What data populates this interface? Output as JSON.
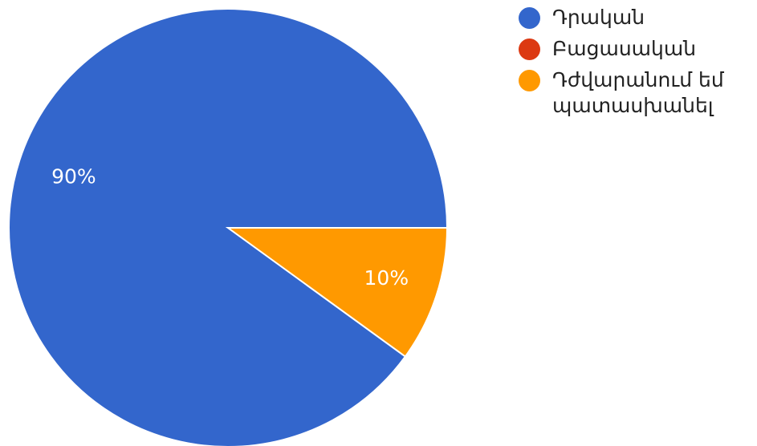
{
  "chart_data": {
    "type": "pie",
    "start_angle_deg": 0,
    "direction": "counterclockwise",
    "slices": [
      {
        "label": "Դրական",
        "value": 90,
        "display": "90%",
        "color": "#3366cc"
      },
      {
        "label": "Բացասական",
        "value": 0,
        "display": "",
        "color": "#dc3912"
      },
      {
        "label": "Դժվարանում եմ պատասխանել",
        "value": 10,
        "display": "10%",
        "color": "#ff9900"
      }
    ],
    "legend_position": "top-right"
  }
}
